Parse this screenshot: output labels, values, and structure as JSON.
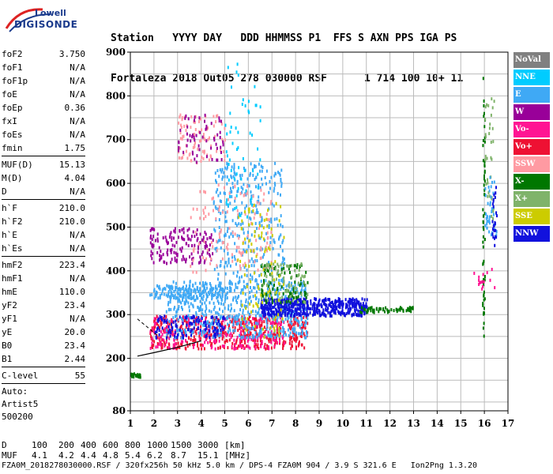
{
  "logo": {
    "line1": "Lowell",
    "line2": "DIGISONDE"
  },
  "header": {
    "labels": [
      "Station",
      "YYYY",
      "DAY",
      "DDD",
      "HHMMSS",
      "P1",
      "FFS",
      "S",
      "AXN",
      "PPS",
      "IGA",
      "PS"
    ],
    "values": [
      "Fortaleza",
      "2018",
      "Out05",
      "278",
      "030000",
      "RSF",
      "",
      "1",
      "714",
      "100",
      "10+",
      "11"
    ]
  },
  "params": {
    "group1": [
      {
        "k": "foF2",
        "v": "3.750"
      },
      {
        "k": "foF1",
        "v": "N/A"
      },
      {
        "k": "foF1p",
        "v": "N/A"
      },
      {
        "k": "foE",
        "v": "N/A"
      },
      {
        "k": "foEp",
        "v": "0.36"
      },
      {
        "k": "fxI",
        "v": "N/A"
      },
      {
        "k": "foEs",
        "v": "N/A"
      },
      {
        "k": "fmin",
        "v": "1.75"
      }
    ],
    "group2": [
      {
        "k": "MUF(D)",
        "v": "15.13"
      },
      {
        "k": "M(D)",
        "v": "4.04"
      },
      {
        "k": "D",
        "v": "N/A"
      }
    ],
    "group3": [
      {
        "k": "h`F",
        "v": "210.0"
      },
      {
        "k": "h`F2",
        "v": "210.0"
      },
      {
        "k": "h`E",
        "v": "N/A"
      },
      {
        "k": "h`Es",
        "v": "N/A"
      }
    ],
    "group4": [
      {
        "k": "hmF2",
        "v": "223.4"
      },
      {
        "k": "hmF1",
        "v": "N/A"
      },
      {
        "k": "hmE",
        "v": "110.0"
      },
      {
        "k": "yF2",
        "v": "23.4"
      },
      {
        "k": "yF1",
        "v": "N/A"
      },
      {
        "k": "yE",
        "v": "20.0"
      },
      {
        "k": "B0",
        "v": "23.4"
      },
      {
        "k": "B1",
        "v": "2.44"
      }
    ],
    "group5": [
      {
        "k": "C-level",
        "v": "55"
      }
    ],
    "auto": [
      "Auto:",
      "Artist5",
      "500200"
    ]
  },
  "legend": [
    {
      "label": "NoVal",
      "color": "#808080"
    },
    {
      "label": "NNE",
      "color": "#00ccff"
    },
    {
      "label": "E",
      "color": "#3fa9f5"
    },
    {
      "label": "W",
      "color": "#990099"
    },
    {
      "label": "Vo-",
      "color": "#ff1493"
    },
    {
      "label": "Vo+",
      "color": "#ee1133"
    },
    {
      "label": "SSW",
      "color": "#ff9aa2"
    },
    {
      "label": "X-",
      "color": "#007700"
    },
    {
      "label": "X+",
      "color": "#7fb36a"
    },
    {
      "label": "SSE",
      "color": "#cccc00"
    },
    {
      "label": "NNW",
      "color": "#1111dd"
    }
  ],
  "footer": {
    "d_label": "D",
    "d_values": [
      "100",
      "200",
      "400",
      "600",
      "800",
      "1000",
      "1500",
      "3000",
      "[km]"
    ],
    "muf_label": "MUF",
    "muf_values": [
      "4.1",
      "4.2",
      "4.4",
      "4.8",
      "5.4",
      "6.2",
      "8.7",
      "15.1",
      "[MHz]"
    ],
    "info": "FZA0M_2018278030000.RSF / 320fx256h 50 kHz 5.0 km / DPS-4 FZA0M 904 / 3.9 S 321.6 E   Ion2Png 1.3.20"
  },
  "chart_data": {
    "type": "scatter",
    "title": "",
    "xlabel": "",
    "ylabel": "",
    "xlim": [
      1,
      17
    ],
    "ylim": [
      80,
      900
    ],
    "x_ticks": [
      1,
      2,
      3,
      4,
      5,
      6,
      7,
      8,
      9,
      10,
      11,
      12,
      13,
      14,
      15,
      16,
      17
    ],
    "y_ticks": [
      80,
      200,
      300,
      400,
      500,
      600,
      700,
      800,
      900
    ],
    "grid": true,
    "legend_position": "right",
    "clusters": [
      {
        "series": "Vo+",
        "x": [
          1.8,
          8.5
        ],
        "y": [
          225,
          300
        ],
        "n": 520
      },
      {
        "series": "Vo-",
        "x": [
          1.8,
          7.5
        ],
        "y": [
          225,
          300
        ],
        "n": 220
      },
      {
        "series": "E",
        "x": [
          2.5,
          8.5
        ],
        "y": [
          250,
          380
        ],
        "n": 600
      },
      {
        "series": "E",
        "x": [
          4.5,
          7.5
        ],
        "y": [
          380,
          650
        ],
        "n": 320
      },
      {
        "series": "E",
        "x": [
          1.8,
          5.0
        ],
        "y": [
          340,
          370
        ],
        "n": 140
      },
      {
        "series": "NNW",
        "x": [
          6.5,
          11.0
        ],
        "y": [
          300,
          340
        ],
        "n": 520
      },
      {
        "series": "NNW",
        "x": [
          2.0,
          5.0
        ],
        "y": [
          250,
          300
        ],
        "n": 120
      },
      {
        "series": "W",
        "x": [
          1.8,
          4.5
        ],
        "y": [
          420,
          500
        ],
        "n": 150
      },
      {
        "series": "SSW",
        "x": [
          3.5,
          7.0
        ],
        "y": [
          400,
          600
        ],
        "n": 130
      },
      {
        "series": "SSW",
        "x": [
          3.0,
          5.0
        ],
        "y": [
          650,
          760
        ],
        "n": 90
      },
      {
        "series": "W",
        "x": [
          3.0,
          5.0
        ],
        "y": [
          650,
          760
        ],
        "n": 60
      },
      {
        "series": "X-",
        "x": [
          10.5,
          13.0
        ],
        "y": [
          308,
          320
        ],
        "n": 60
      },
      {
        "series": "X-",
        "x": [
          1.0,
          1.4
        ],
        "y": [
          160,
          168
        ],
        "n": 25
      },
      {
        "series": "X-",
        "x": [
          6.5,
          8.5
        ],
        "y": [
          330,
          420
        ],
        "n": 90
      },
      {
        "series": "X+",
        "x": [
          6.5,
          8.5
        ],
        "y": [
          330,
          420
        ],
        "n": 80
      },
      {
        "series": "SSE",
        "x": [
          5.5,
          7.5
        ],
        "y": [
          250,
          560
        ],
        "n": 100
      },
      {
        "series": "NNE",
        "x": [
          5.0,
          6.5
        ],
        "y": [
          520,
          880
        ],
        "n": 60
      },
      {
        "series": "X-",
        "x": [
          15.9,
          16.0
        ],
        "y": [
          250,
          850
        ],
        "n": 60
      },
      {
        "series": "X+",
        "x": [
          16.0,
          16.4
        ],
        "y": [
          520,
          800
        ],
        "n": 35
      },
      {
        "series": "E",
        "x": [
          16.0,
          16.5
        ],
        "y": [
          480,
          620
        ],
        "n": 40
      },
      {
        "series": "NNW",
        "x": [
          16.3,
          16.5
        ],
        "y": [
          460,
          600
        ],
        "n": 25
      },
      {
        "series": "Vo-",
        "x": [
          15.5,
          16.5
        ],
        "y": [
          360,
          420
        ],
        "n": 15
      }
    ],
    "trace_line": {
      "x": [
        1.3,
        2.0,
        3.0,
        4.0
      ],
      "y": [
        205,
        213,
        225,
        240
      ]
    },
    "trace_dashed": {
      "x": [
        1.3,
        2.2
      ],
      "y": [
        290,
        250
      ]
    }
  }
}
